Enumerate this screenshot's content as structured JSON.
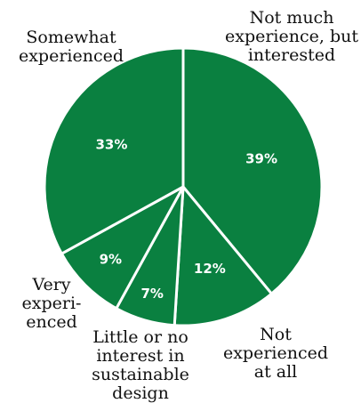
{
  "chart_data": {
    "type": "pie",
    "title": "",
    "slices": [
      {
        "label": "Not much experience, but interested",
        "value": 39,
        "value_label": "39%"
      },
      {
        "label": "Not experienced at all",
        "value": 12,
        "value_label": "12%"
      },
      {
        "label": "Little or no interest in sustainable design",
        "value": 7,
        "value_label": "7%"
      },
      {
        "label": "Very experienced",
        "value": 9,
        "value_label": "9%"
      },
      {
        "label": "Somewhat experienced",
        "value": 33,
        "value_label": "33%"
      }
    ],
    "slice_color": "#0a8040",
    "separator_color": "#ffffff",
    "start_angle_deg": 0,
    "direction": "clockwise"
  }
}
